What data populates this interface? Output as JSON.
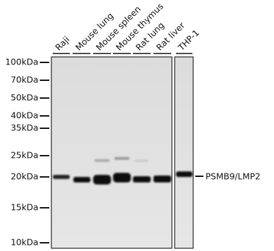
{
  "lanes": [
    "Raji",
    "Mouse lung",
    "Mouse spleen",
    "Mouse thymus",
    "Rat lung",
    "Rat liver",
    "THP-1"
  ],
  "markers": [
    "100kDa",
    "70kDa",
    "50kDa",
    "40kDa",
    "35kDa",
    "25kDa",
    "20kDa",
    "15kDa",
    "10kDa"
  ],
  "band_label": "PSMB9/LMP2"
}
